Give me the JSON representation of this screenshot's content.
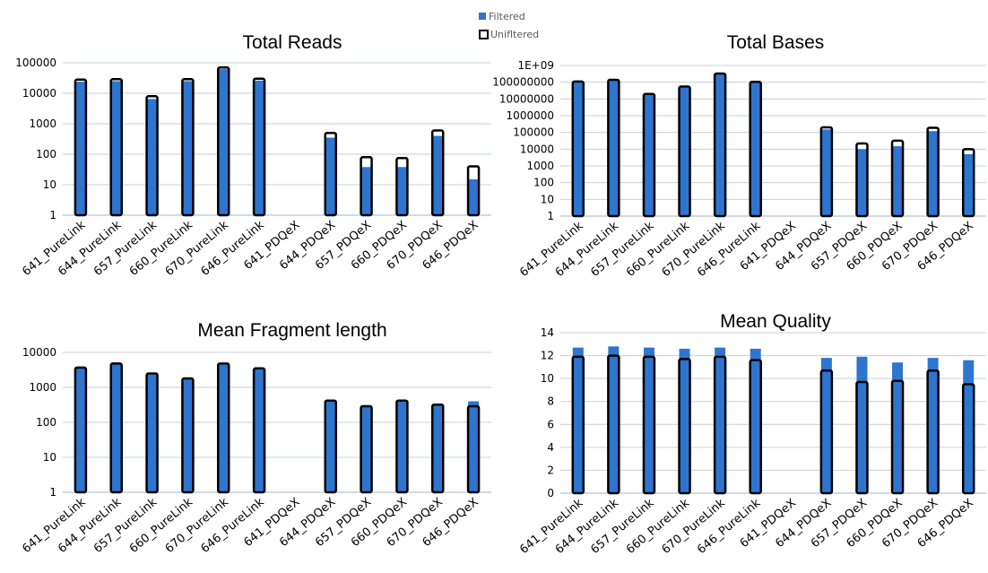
{
  "legend": {
    "filtered": "Filtered",
    "unfiltered": "Unifltered"
  },
  "colors": {
    "filtered": "#2e75d0",
    "unfiltered_outline": "#000000",
    "gridline": "#c5d0dc",
    "axis": "#9fb4c8"
  },
  "chart_data": [
    {
      "type": "bar",
      "title": "Total Reads",
      "scale": "log",
      "ylim": [
        1,
        100000
      ],
      "yticks": [
        1,
        10,
        100,
        1000,
        10000,
        100000
      ],
      "ytick_labels": [
        "1",
        "10",
        "100",
        "1000",
        "10000",
        "100000"
      ],
      "categories": [
        "641_PureLink",
        "644_PureLink",
        "657_PureLink",
        "660_PureLink",
        "670_PureLink",
        "646_PureLink",
        "641_PDQeX",
        "644_PDQeX",
        "657_PDQeX",
        "660_PDQeX",
        "670_PDQeX",
        "646_PDQeX"
      ],
      "series": [
        {
          "name": "Filtered",
          "values": [
            24000,
            25000,
            6500,
            25000,
            62000,
            26000,
            null,
            350,
            38,
            38,
            400,
            15
          ]
        },
        {
          "name": "Unifltered",
          "values": [
            28000,
            29000,
            8000,
            29000,
            70000,
            30000,
            null,
            500,
            80,
            75,
            600,
            40
          ]
        }
      ],
      "grid": true,
      "legend_position": "top-center"
    },
    {
      "type": "bar",
      "title": "Total Bases",
      "scale": "log",
      "ylim": [
        1,
        1000000000
      ],
      "yticks": [
        1,
        10,
        100,
        1000,
        10000,
        100000,
        1000000,
        10000000,
        100000000,
        1000000000
      ],
      "ytick_labels": [
        "1",
        "10",
        "100",
        "1000",
        "10000",
        "100000",
        "1000000",
        "10000000",
        "100000000",
        "1E+09"
      ],
      "categories": [
        "641_PureLink",
        "644_PureLink",
        "657_PureLink",
        "660_PureLink",
        "670_PureLink",
        "646_PureLink",
        "641_PDQeX",
        "644_PDQeX",
        "657_PDQeX",
        "660_PDQeX",
        "670_PDQeX",
        "646_PDQeX"
      ],
      "series": [
        {
          "name": "Filtered",
          "values": [
            100000000,
            130000000,
            19000000,
            48000000,
            290000000,
            95000000,
            null,
            150000,
            10000,
            15000,
            120000,
            5000
          ]
        },
        {
          "name": "Unifltered",
          "values": [
            110000000,
            140000000,
            20000000,
            55000000,
            330000000,
            105000000,
            null,
            200000,
            22000,
            32000,
            190000,
            10000
          ]
        }
      ],
      "grid": true
    },
    {
      "type": "bar",
      "title": "Mean Fragment length",
      "scale": "log",
      "ylim": [
        1,
        10000
      ],
      "yticks": [
        1,
        10,
        100,
        1000,
        10000
      ],
      "ytick_labels": [
        "1",
        "10",
        "100",
        "1000",
        "10000"
      ],
      "categories": [
        "641_PureLink",
        "644_PureLink",
        "657_PureLink",
        "660_PureLink",
        "670_PureLink",
        "646_PureLink",
        "641_PDQeX",
        "644_PDQeX",
        "657_PDQeX",
        "660_PDQeX",
        "670_PDQeX",
        "646_PDQeX"
      ],
      "series": [
        {
          "name": "Filtered",
          "values": [
            3700,
            4800,
            2500,
            1800,
            4800,
            3500,
            null,
            420,
            290,
            420,
            320,
            400
          ]
        },
        {
          "name": "Unifltered",
          "values": [
            3700,
            4800,
            2500,
            1800,
            4800,
            3500,
            null,
            420,
            290,
            420,
            320,
            290
          ]
        }
      ],
      "grid": true
    },
    {
      "type": "bar",
      "title": "Mean Quality",
      "scale": "linear",
      "ylim": [
        0,
        14
      ],
      "yticks": [
        0,
        2,
        4,
        6,
        8,
        10,
        12,
        14
      ],
      "ytick_labels": [
        "0",
        "2",
        "4",
        "6",
        "8",
        "10",
        "12",
        "14"
      ],
      "categories": [
        "641_PureLink",
        "644_PureLink",
        "657_PureLink",
        "660_PureLink",
        "670_PureLink",
        "646_PureLink",
        "641_PDQeX",
        "644_PDQeX",
        "657_PDQeX",
        "660_PDQeX",
        "670_PDQeX",
        "646_PDQeX"
      ],
      "series": [
        {
          "name": "Filtered",
          "values": [
            12.7,
            12.8,
            12.7,
            12.6,
            12.7,
            12.6,
            null,
            11.8,
            11.9,
            11.4,
            11.8,
            11.6
          ]
        },
        {
          "name": "Unifltered",
          "values": [
            11.9,
            12.0,
            11.9,
            11.7,
            11.9,
            11.6,
            null,
            10.7,
            9.7,
            9.8,
            10.7,
            9.5
          ]
        }
      ],
      "grid": true
    }
  ]
}
